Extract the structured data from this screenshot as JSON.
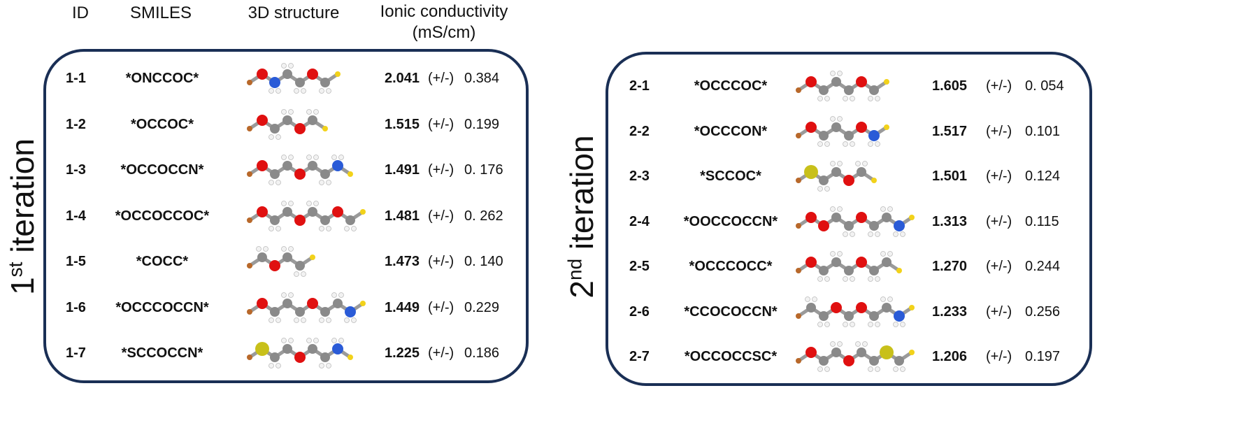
{
  "headers": {
    "id": "ID",
    "smiles": "SMILES",
    "structure": "3D structure",
    "conductivity_line1": "Ionic conductivity",
    "conductivity_line2": "(mS/cm)"
  },
  "panels": [
    {
      "label_num": "1",
      "label_sup": "st",
      "label_word": " iteration",
      "rows": [
        {
          "id": "1-1",
          "smiles": "*ONCCOC*",
          "value": "2.041",
          "pm": "(+/-)",
          "err": "0.384",
          "mol": [
            "br",
            "O",
            "N",
            "C",
            "C",
            "O",
            "C",
            "y"
          ]
        },
        {
          "id": "1-2",
          "smiles": "*OCCOC*",
          "value": "1.515",
          "pm": "(+/-)",
          "err": "0.199",
          "mol": [
            "br",
            "O",
            "C",
            "C",
            "O",
            "C",
            "y"
          ]
        },
        {
          "id": "1-3",
          "smiles": "*OCCOCCN*",
          "value": "1.491",
          "pm": "(+/-)",
          "err": "0. 176",
          "mol": [
            "br",
            "O",
            "C",
            "C",
            "O",
            "C",
            "C",
            "N",
            "y"
          ]
        },
        {
          "id": "1-4",
          "smiles": "*OCCOCCOC*",
          "value": "1.481",
          "pm": "(+/-)",
          "err": "0. 262",
          "mol": [
            "br",
            "O",
            "C",
            "C",
            "O",
            "C",
            "C",
            "O",
            "C",
            "y"
          ]
        },
        {
          "id": "1-5",
          "smiles": "*COCC*",
          "value": "1.473",
          "pm": "(+/-)",
          "err": "0. 140",
          "mol": [
            "br",
            "C",
            "O",
            "C",
            "C",
            "y"
          ]
        },
        {
          "id": "1-6",
          "smiles": "*OCCCOCCN*",
          "value": "1.449",
          "pm": "(+/-)",
          "err": "0.229",
          "mol": [
            "br",
            "O",
            "C",
            "C",
            "C",
            "O",
            "C",
            "C",
            "N",
            "y"
          ]
        },
        {
          "id": "1-7",
          "smiles": "*SCCOCCN*",
          "value": "1.225",
          "pm": "(+/-)",
          "err": "0.186",
          "mol": [
            "br",
            "S",
            "C",
            "C",
            "O",
            "C",
            "C",
            "N",
            "y"
          ]
        }
      ]
    },
    {
      "label_num": "2",
      "label_sup": "nd",
      "label_word": " iteration",
      "rows": [
        {
          "id": "2-1",
          "smiles": "*OCCCOC*",
          "value": "1.605",
          "pm": "(+/-)",
          "err": "0. 054",
          "mol": [
            "br",
            "O",
            "C",
            "C",
            "C",
            "O",
            "C",
            "y"
          ]
        },
        {
          "id": "2-2",
          "smiles": "*OCCCON*",
          "value": "1.517",
          "pm": "(+/-)",
          "err": "0.101",
          "mol": [
            "br",
            "O",
            "C",
            "C",
            "C",
            "O",
            "N",
            "y"
          ]
        },
        {
          "id": "2-3",
          "smiles": "*SCCOC*",
          "value": "1.501",
          "pm": "(+/-)",
          "err": "0.124",
          "mol": [
            "br",
            "S",
            "C",
            "C",
            "O",
            "C",
            "y"
          ]
        },
        {
          "id": "2-4",
          "smiles": "*OOCCOCCN*",
          "value": "1.313",
          "pm": "(+/-)",
          "err": "0.115",
          "mol": [
            "br",
            "O",
            "O",
            "C",
            "C",
            "O",
            "C",
            "C",
            "N",
            "y"
          ]
        },
        {
          "id": "2-5",
          "smiles": "*OCCCOCC*",
          "value": "1.270",
          "pm": "(+/-)",
          "err": "0.244",
          "mol": [
            "br",
            "O",
            "C",
            "C",
            "C",
            "O",
            "C",
            "C",
            "y"
          ]
        },
        {
          "id": "2-6",
          "smiles": "*CCOCOCCN*",
          "value": "1.233",
          "pm": "(+/-)",
          "err": "0.256",
          "mol": [
            "br",
            "C",
            "C",
            "O",
            "C",
            "O",
            "C",
            "C",
            "N",
            "y"
          ]
        },
        {
          "id": "2-7",
          "smiles": "*OCCOCCSC*",
          "value": "1.206",
          "pm": "(+/-)",
          "err": "0.197",
          "mol": [
            "br",
            "O",
            "C",
            "C",
            "O",
            "C",
            "C",
            "S",
            "C",
            "y"
          ]
        }
      ]
    }
  ],
  "atom_colors": {
    "C": "#8a8a8a",
    "O": "#e01010",
    "N": "#2a5bd7",
    "S": "#c8c01a",
    "H": "#f2f2f2",
    "br": "#b8682a",
    "y": "#f2d21a"
  },
  "panel_border_color": "#1a2f55"
}
